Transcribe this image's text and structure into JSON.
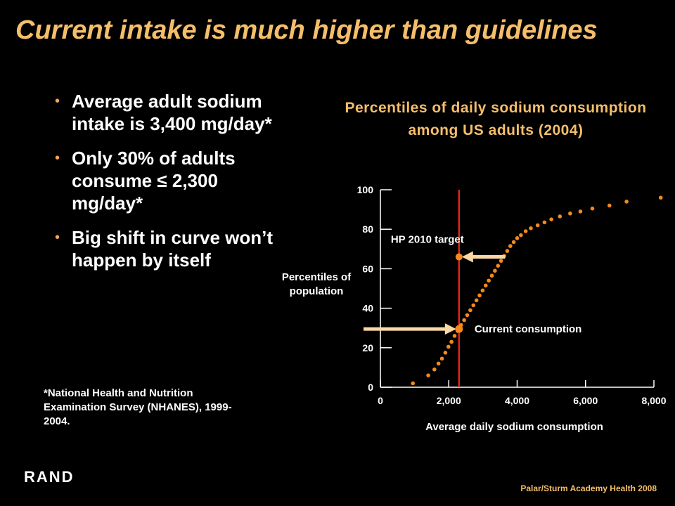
{
  "slide": {
    "title": "Current intake is much higher than guidelines",
    "bullets": [
      "Average adult sodium intake is 3,400 mg/day*",
      "Only 30% of adults consume ≤ 2,300 mg/day*",
      "Big shift in curve won’t happen by itself"
    ],
    "footnote": "*National Health and Nutrition Examination Survey (NHANES), 1999-2004.",
    "logo": "RAND",
    "credit": "Palar/Sturm Academy Health 2008",
    "bullet_glyph": "•"
  },
  "chart_data": {
    "type": "scatter",
    "title": "Percentiles of daily sodium consumption among US adults (2004)",
    "xlabel": "Average daily sodium consumption",
    "ylabel": "Percentiles of population",
    "xlim": [
      0,
      8000
    ],
    "ylim": [
      0,
      100
    ],
    "x_ticks": [
      0,
      2000,
      4000,
      6000,
      8000
    ],
    "x_tick_labels": [
      "0",
      "2,000",
      "4,000",
      "6,000",
      "8,000"
    ],
    "y_ticks": [
      0,
      20,
      40,
      60,
      80,
      100
    ],
    "y_tick_labels": [
      "0",
      "20",
      "40",
      "60",
      "80",
      "100"
    ],
    "points": [
      [
        950,
        2
      ],
      [
        1400,
        6
      ],
      [
        1580,
        9
      ],
      [
        1700,
        12
      ],
      [
        1800,
        14.5
      ],
      [
        1900,
        17.5
      ],
      [
        1990,
        20.5
      ],
      [
        2080,
        23
      ],
      [
        2170,
        26
      ],
      [
        2260,
        28.5
      ],
      [
        2360,
        31.5
      ],
      [
        2450,
        34
      ],
      [
        2540,
        36.5
      ],
      [
        2630,
        39
      ],
      [
        2720,
        41.5
      ],
      [
        2810,
        44
      ],
      [
        2900,
        46.5
      ],
      [
        2990,
        49
      ],
      [
        3080,
        51.5
      ],
      [
        3170,
        54
      ],
      [
        3260,
        56.5
      ],
      [
        3350,
        59
      ],
      [
        3440,
        61.5
      ],
      [
        3530,
        64
      ],
      [
        3620,
        66.5
      ],
      [
        3710,
        69
      ],
      [
        3800,
        71.5
      ],
      [
        3900,
        73.5
      ],
      [
        4000,
        75.5
      ],
      [
        4110,
        77
      ],
      [
        4250,
        79
      ],
      [
        4400,
        80.5
      ],
      [
        4600,
        82
      ],
      [
        4800,
        83.5
      ],
      [
        5000,
        85
      ],
      [
        5250,
        86.5
      ],
      [
        5550,
        88
      ],
      [
        5850,
        89
      ],
      [
        6200,
        90.5
      ],
      [
        6700,
        92
      ],
      [
        7200,
        94
      ],
      [
        8200,
        96
      ]
    ],
    "target_line_x": 2300,
    "annotations": [
      {
        "text": "HP 2010 target",
        "x": 2300,
        "y": 66,
        "arrow_from_x": 3650
      },
      {
        "text": "Current consumption",
        "x": 2300,
        "y": 29.5,
        "arrow_from_x": 0
      }
    ],
    "colors": {
      "points": "#F28A1C",
      "target_line": "#E0231B",
      "arrow": "#FBD9A5",
      "title": "#F5BE6A",
      "axis": "#FFFFFF"
    }
  }
}
